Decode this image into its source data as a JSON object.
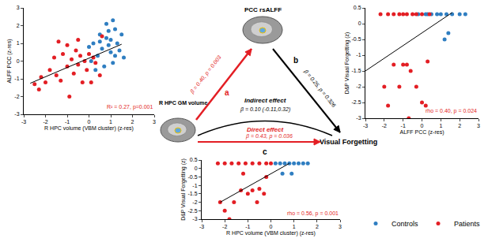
{
  "chart_data": [
    {
      "type": "scatter",
      "xlabel": "R HPC volume (VBM cluster) (z-res)",
      "ylabel": "ALFF PCC (z-res)",
      "xlim": [
        -3,
        3
      ],
      "ylim": [
        -3,
        3
      ],
      "xticks": [
        -3,
        -2,
        -1,
        0,
        1,
        2,
        3
      ],
      "yticks": [
        -3,
        -2,
        -1,
        0,
        1,
        2,
        3
      ],
      "grid": false,
      "annotations": [
        {
          "text": "R² = 0.27, p=0.001",
          "color": "#e31e24"
        }
      ],
      "series": [
        {
          "name": "Controls",
          "color": "#2f7ec1",
          "x": [
            0.2,
            0.5,
            0.8,
            0.9,
            1.0,
            1.1,
            1.2,
            1.3,
            0.6,
            0.4,
            0.7,
            1.0,
            1.4,
            0.1,
            0.3,
            0.9,
            1.5,
            1.6,
            0.0,
            1.2,
            0.5,
            0.8,
            1.1
          ],
          "y": [
            1.0,
            1.5,
            2.1,
            1.7,
            1.2,
            2.3,
            1.8,
            1.0,
            0.7,
            0.3,
            -0.3,
            0.5,
            0.6,
            0.0,
            -0.5,
            0.9,
            1.5,
            0.2,
            0.8,
            0.3,
            1.1,
            1.3,
            -0.1
          ]
        },
        {
          "name": "Patients",
          "color": "#e31e24",
          "x": [
            -2.5,
            -2.2,
            -2.0,
            -1.8,
            -1.6,
            -1.5,
            -1.3,
            -1.2,
            -1.0,
            -1.0,
            -0.9,
            -0.8,
            -0.7,
            -0.6,
            -0.5,
            -0.4,
            -0.3,
            -0.2,
            -0.1,
            0.0,
            0.1,
            0.2,
            0.3,
            0.5,
            -1.4,
            -2.3,
            0.6,
            -0.5
          ],
          "y": [
            -1.3,
            -0.9,
            -1.2,
            -0.5,
            0.2,
            -0.8,
            -1.1,
            0.4,
            -0.3,
            0.9,
            -2.0,
            0.1,
            -0.7,
            0.6,
            -0.2,
            0.3,
            -1.2,
            0.0,
            -0.5,
            0.4,
            -1.2,
            0.2,
            -0.1,
            -0.8,
            1.1,
            -1.6,
            1.4,
            1.2
          ]
        }
      ],
      "fit": {
        "x": [
          -2.7,
          1.5
        ],
        "y": [
          -1.25,
          0.95
        ]
      }
    },
    {
      "type": "scatter",
      "xlabel": "ALFF PCC (z-res)",
      "ylabel": "D&P Visual Forgetting (z)",
      "xlim": [
        -3,
        3
      ],
      "ylim": [
        -3,
        0.5
      ],
      "xticks": [
        -3,
        -2,
        -1,
        0,
        1,
        2,
        3
      ],
      "yticks": [
        -3,
        -2.5,
        -2,
        -1.5,
        -1,
        -0.5,
        0,
        0.5
      ],
      "grid": false,
      "annotations": [
        {
          "text": "rho = 0.40, p = 0.024",
          "color": "#e31e24"
        }
      ],
      "series": [
        {
          "name": "Controls",
          "color": "#2f7ec1",
          "x": [
            0.2,
            0.5,
            0.8,
            1.0,
            1.3,
            1.6,
            2.0,
            2.3,
            1.4,
            1.2,
            0.3,
            -0.2
          ],
          "y": [
            0.3,
            0.3,
            0.3,
            0.3,
            0.3,
            0.3,
            0.3,
            0.3,
            -0.3,
            -0.5,
            0.3,
            0.3
          ]
        },
        {
          "name": "Patients",
          "color": "#e31e24",
          "x": [
            -2.2,
            -1.8,
            -1.5,
            -1.2,
            -1.0,
            -0.8,
            -0.5,
            -0.3,
            0.0,
            0.4,
            -2.0,
            -1.8,
            -1.5,
            -1.0,
            -0.8,
            -0.6,
            -0.3,
            0.0,
            0.2,
            -0.7,
            0.3,
            -1.2
          ],
          "y": [
            0.3,
            0.3,
            0.3,
            0.3,
            0.3,
            0.3,
            0.3,
            0.3,
            0.3,
            0.3,
            -2.0,
            -2.6,
            -1.3,
            -1.3,
            -1.3,
            -1.5,
            -2.0,
            -2.5,
            -2.6,
            -3.0,
            -1.2,
            -2.0
          ]
        }
      ],
      "fit": {
        "x": [
          -3,
          1.6
        ],
        "y": [
          -1.5,
          0.35
        ]
      }
    },
    {
      "type": "scatter",
      "xlabel": "R HPC volume (VBM cluster) (z-res)",
      "ylabel": "D&P Visual Forgetting (z)",
      "xlim": [
        -3,
        3
      ],
      "ylim": [
        -3,
        0.5
      ],
      "xticks": [
        -3,
        -2,
        -1,
        0,
        1,
        2,
        3
      ],
      "yticks": [
        -3,
        -2.5,
        -2,
        -1.5,
        -1,
        -0.5,
        0,
        0.5
      ],
      "grid": false,
      "annotations": [
        {
          "text": "rho = 0.56, p = 0.001",
          "color": "#e31e24"
        }
      ],
      "series": [
        {
          "name": "Controls",
          "color": "#2f7ec1",
          "x": [
            0.2,
            0.4,
            0.6,
            0.8,
            1.0,
            1.2,
            1.4,
            1.6,
            0.5,
            0.9
          ],
          "y": [
            0.3,
            0.3,
            0.3,
            0.3,
            0.3,
            0.3,
            0.3,
            0.3,
            -0.3,
            -0.3
          ]
        },
        {
          "name": "Patients",
          "color": "#e31e24",
          "x": [
            -2.3,
            -2.0,
            -1.7,
            -1.4,
            -1.1,
            -0.8,
            -0.5,
            -0.2,
            0.0,
            -2.2,
            -2.0,
            -1.6,
            -1.3,
            -1.0,
            -0.8,
            -0.6,
            -0.3,
            -0.5,
            -1.8,
            -1.2,
            -0.2
          ],
          "y": [
            0.3,
            0.3,
            0.3,
            0.3,
            0.3,
            0.3,
            0.3,
            0.3,
            0.3,
            -2.0,
            -2.5,
            -2.0,
            -1.3,
            -1.5,
            -1.3,
            -2.0,
            -1.5,
            -1.2,
            -3.0,
            -0.3,
            -0.5
          ]
        }
      ],
      "fit": {
        "x": [
          -2.2,
          0.8
        ],
        "y": [
          -2.0,
          0.3
        ]
      }
    }
  ],
  "diagram": {
    "nodes": {
      "mediator": "PCC rsALFF",
      "predictor": "R HPC GM volume",
      "outcome": "Visual Forgetting"
    },
    "paths": {
      "a": {
        "label": "a",
        "text": "β = 0.40, p = 0.003",
        "color": "#e31e24"
      },
      "b": {
        "label": "b",
        "text": "β = 0.25, p = 0.326",
        "color": "#000000"
      },
      "c": {
        "label": "c",
        "color": "#000000"
      }
    },
    "indirect": {
      "title": "Indirect effect",
      "text": "β = 0.10 (-0.11,0.32)",
      "color": "#000000"
    },
    "direct": {
      "title": "Direct effect",
      "text": "β = 0.43, p = 0.036",
      "color": "#e31e24"
    }
  }
}
